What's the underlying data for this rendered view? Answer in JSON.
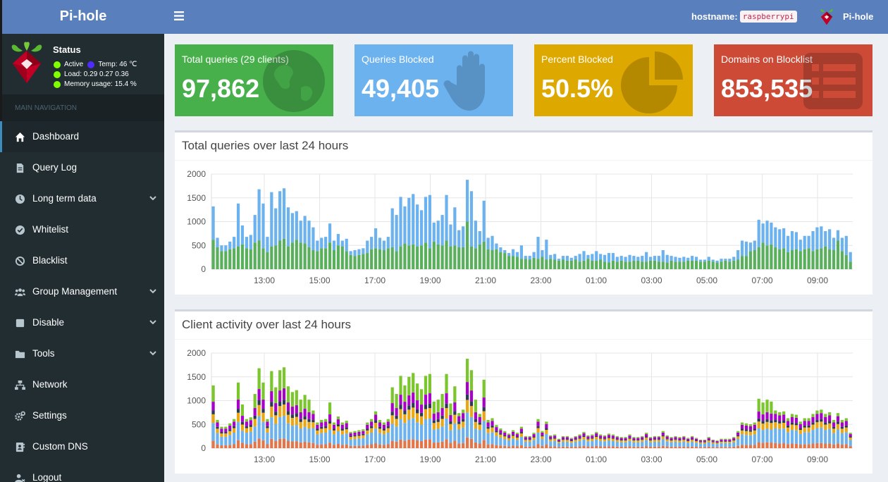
{
  "brand": "Pi-hole",
  "status": {
    "title": "Status",
    "active": "Active",
    "temp": "Temp: 46 ℃",
    "load": "Load:  0.29  0.27  0.36",
    "memory": "Memory usage:  15.4 %"
  },
  "nav": {
    "header": "MAIN NAVIGATION",
    "items": [
      {
        "label": "Dashboard",
        "icon": "home-icon"
      },
      {
        "label": "Query Log",
        "icon": "file-icon"
      },
      {
        "label": "Long term data",
        "icon": "clock-icon"
      },
      {
        "label": "Whitelist",
        "icon": "check-circle-icon"
      },
      {
        "label": "Blacklist",
        "icon": "ban-icon"
      },
      {
        "label": "Group Management",
        "icon": "users-icon"
      },
      {
        "label": "Disable",
        "icon": "stop-icon"
      },
      {
        "label": "Tools",
        "icon": "folder-icon"
      },
      {
        "label": "Network",
        "icon": "network-icon"
      },
      {
        "label": "Settings",
        "icon": "gears-icon"
      },
      {
        "label": "Custom DNS",
        "icon": "address-book-icon"
      },
      {
        "label": "Logout",
        "icon": "user-logout-icon"
      }
    ]
  },
  "topbar": {
    "hostname_label": "hostname:",
    "hostname_value": "raspberrypi",
    "user": "Pi-hole"
  },
  "stats": [
    {
      "label": "Total queries (29 clients)",
      "value": "97,862",
      "color": "#47b04b",
      "icon": "globe-icon"
    },
    {
      "label": "Queries Blocked",
      "value": "49,405",
      "color": "#6cb2ef",
      "icon": "hand-icon"
    },
    {
      "label": "Percent Blocked",
      "value": "50.5%",
      "color": "#dda800",
      "icon": "pie-chart-icon"
    },
    {
      "label": "Domains on Blocklist",
      "value": "853,535",
      "color": "#cc4a36",
      "icon": "list-icon"
    }
  ],
  "chart_data": [
    {
      "type": "bar",
      "title": "Total queries over last 24 hours",
      "x_ticks": [
        "13:00",
        "15:00",
        "17:00",
        "19:00",
        "21:00",
        "23:00",
        "01:00",
        "03:00",
        "05:00",
        "07:00",
        "09:00"
      ],
      "y_ticks": [
        0,
        500,
        1000,
        1500,
        2000
      ],
      "ylim": [
        0,
        2000
      ],
      "grid": true,
      "stacked": true,
      "series": [
        {
          "color": "#5aaf5c",
          "values": [
            620,
            460,
            380,
            380,
            420,
            440,
            480,
            520,
            440,
            420,
            560,
            600,
            440,
            360,
            480,
            500,
            600,
            640,
            480,
            560,
            620,
            560,
            540,
            460,
            400,
            380,
            440,
            440,
            560,
            400,
            500,
            480,
            380,
            300,
            280,
            300,
            320,
            340,
            420,
            440,
            420,
            400,
            440,
            460,
            380,
            480,
            540,
            500,
            520,
            480,
            500,
            560,
            440,
            580,
            520,
            500,
            600,
            480,
            500,
            460,
            460,
            1000,
            480,
            440,
            520,
            580,
            420,
            400,
            420,
            360,
            340,
            280,
            280,
            260,
            220,
            220,
            200,
            240,
            220,
            260,
            200,
            220,
            200,
            180,
            200,
            180,
            180,
            200,
            160,
            180,
            220,
            180,
            180,
            200,
            160,
            140,
            180,
            160,
            180,
            160,
            160,
            180,
            180,
            160,
            160,
            180,
            180,
            160,
            160,
            140,
            180,
            160,
            160,
            160,
            180,
            180,
            180,
            160,
            160,
            180,
            160,
            140,
            160,
            180,
            160,
            180,
            200,
            280,
            280,
            380,
            400,
            460,
            560,
            500,
            520,
            460,
            420,
            440,
            360,
            400,
            420,
            380,
            420,
            440,
            380,
            420,
            440,
            480,
            420,
            400,
            600,
            380,
            300,
            160
          ]
        },
        {
          "color": "#6cb2ef",
          "values": [
            700,
            200,
            120,
            120,
            160,
            240,
            900,
            400,
            240,
            300,
            580,
            1080,
            940,
            320,
            1140,
            780,
            1040,
            1060,
            820,
            620,
            600,
            460,
            580,
            560,
            480,
            220,
            220,
            240,
            400,
            200,
            240,
            120,
            260,
            80,
            120,
            120,
            120,
            260,
            260,
            420,
            240,
            200,
            240,
            820,
            760,
            1040,
            780,
            1000,
            1060,
            880,
            740,
            960,
            1120,
            400,
            500,
            640,
            960,
            460,
            800,
            360,
            440,
            880,
            1160,
            580,
            280,
            860,
            240,
            300,
            120,
            100,
            60,
            60,
            140,
            100,
            280,
            60,
            80,
            120,
            460,
            140,
            420,
            80,
            120,
            40,
            80,
            100,
            60,
            80,
            160,
            200,
            80,
            140,
            200,
            120,
            140,
            200,
            160,
            100,
            100,
            100,
            140,
            100,
            80,
            120,
            200,
            80,
            100,
            120,
            240,
            160,
            100,
            100,
            80,
            100,
            60,
            100,
            80,
            40,
            40,
            80,
            40,
            40,
            60,
            40,
            60,
            80,
            200,
            320,
            300,
            180,
            200,
            580,
            400,
            520,
            460,
            420,
            420,
            420,
            340,
            400,
            360,
            240,
            280,
            260,
            420,
            460,
            460,
            320,
            420,
            260,
            220,
            280,
            400,
            200
          ]
        }
      ]
    },
    {
      "type": "bar",
      "title": "Client activity over last 24 hours",
      "x_ticks": [
        "13:00",
        "15:00",
        "17:00",
        "19:00",
        "21:00",
        "23:00",
        "01:00",
        "03:00",
        "05:00",
        "07:00",
        "09:00"
      ],
      "y_ticks": [
        0,
        500,
        1000,
        1500,
        2000
      ],
      "ylim": [
        0,
        2000
      ],
      "grid": true,
      "stacked": true,
      "series_colors": [
        "#e2764a",
        "#6cb2ef",
        "#eaa613",
        "#2b3a55",
        "#a900c9",
        "#7ac62c"
      ],
      "totals": [
        1320,
        660,
        500,
        500,
        580,
        680,
        1380,
        920,
        680,
        720,
        1140,
        1680,
        1380,
        680,
        1620,
        1280,
        1640,
        1700,
        1300,
        1180,
        1220,
        1020,
        1120,
        1020,
        880,
        600,
        660,
        680,
        960,
        600,
        740,
        600,
        640,
        380,
        400,
        420,
        440,
        600,
        680,
        860,
        660,
        600,
        680,
        1280,
        1140,
        1520,
        1320,
        1500,
        1580,
        1360,
        1240,
        1520,
        1560,
        980,
        1020,
        1140,
        1560,
        940,
        1300,
        820,
        900,
        1880,
        1640,
        1020,
        800,
        1440,
        660,
        700,
        540,
        460,
        400,
        340,
        420,
        360,
        500,
        280,
        280,
        360,
        680,
        400,
        620,
        300,
        320,
        220,
        280,
        280,
        240,
        280,
        320,
        380,
        300,
        320,
        380,
        320,
        300,
        340,
        320,
        280,
        260,
        260,
        320,
        260,
        260,
        280,
        360,
        260,
        280,
        280,
        400,
        300,
        260,
        280,
        260,
        280,
        240,
        280,
        240,
        200,
        200,
        260,
        200,
        180,
        220,
        220,
        220,
        260,
        400,
        600,
        580,
        560,
        600,
        1040,
        960,
        1020,
        980,
        880,
        840,
        860,
        700,
        800,
        780,
        620,
        700,
        700,
        800,
        880,
        900,
        800,
        840,
        660,
        820,
        660,
        700,
        360
      ]
    }
  ]
}
